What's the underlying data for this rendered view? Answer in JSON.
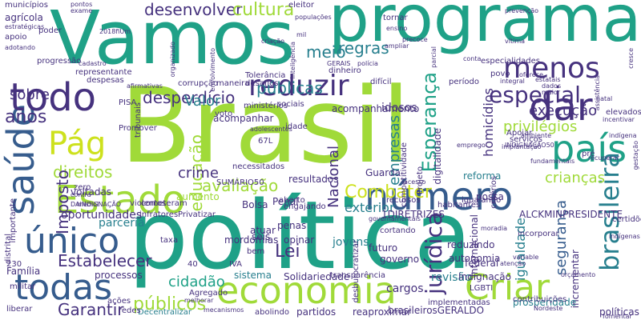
{
  "words": {
    "brasil": "Brasil",
    "politica": "política",
    "programa": "programa",
    "vamos": "Vamos",
    "estado": "Estado",
    "economia": "economia",
    "saude": "saúde",
    "numero": "número",
    "todo": "todo",
    "todas": "todas",
    "unico": "único",
    "pais": "país",
    "dar": "dar",
    "menos": "menos",
    "reduzir": "reduzir",
    "criar": "Criar",
    "pag": "Pág",
    "especial": "especial",
    "brasileira": "brasileira",
    "juridica": "jurídica",
    "combater": "Combater",
    "esperanca": "Esperança",
    "desenvolver": "desenvolver",
    "cultura": "cultura",
    "meio": "meio",
    "regras": "regras",
    "publicas": "públicas",
    "desperdicio": "desperdício",
    "anos": "anos",
    "sobre": "sobre",
    "direitos": "direitos",
    "imposto": "Imposto",
    "valor": "Valor",
    "educacao": "educação",
    "avaliacao": "avaliação",
    "crime": "crime",
    "lei": "Lei",
    "estabelecer": "Estabelecer",
    "cidadao": "cidadão",
    "publicos": "públicos",
    "garantir": "Garantir",
    "nacional": "Nacional",
    "empresas": "empresas",
    "homicidios": "homicídios",
    "execucao": "execução",
    "privilegios": "privilégios",
    "criancas": "crianças",
    "seguranca": "segurança",
    "exterior": "exterior",
    "igualdade": "igualdade",
    "oportunidades": "oportunidades",
    "parceria": "parceria",
    "voltadas": "voltadas",
    "familia": "Família",
    "agricola": "agrícola",
    "municipios": "municípios",
    "apoio": "apoio",
    "aumento": "aumento",
    "idosos": "idosos",
    "reforma": "reforma",
    "jovens": "jovens",
    "cargos": "cargos",
    "revisao": "revisão",
    "indignacao": "Indignação",
    "solidariedade": "Solidariedade",
    "processos": "processos",
    "sistema": "sistema",
    "partidos": "partidos",
    "decentralizar": "Decentralizar",
    "futuro": "futuro",
    "governo": "governo",
    "autonomia": "autonomia",
    "federal": "federal",
    "reduzindo": "reduzindo",
    "internacional": "internacional",
    "incrementar": "incrementar",
    "possa": "possa",
    "alckmin": "ALCKMINPRESIDENTE",
    "diretrizes": "1DIRETRIZES",
    "brasileirosgeraldo": "brasileirosGERALDO",
    "reaproximar": "reaproximar",
    "implementadas": "implementadas",
    "prosperidade": "prosperidade",
    "politicas": "políticas",
    "mordomias": "mordomias",
    "atuar": "atuar",
    "seis": "seis",
    "penas": "penas",
    "opinar": "opinar",
    "bolsa": "Bolsa",
    "penal": "Penal",
    "resultados": "resultados",
    "guarda": "Guarda",
    "acompanhamento": "acompanhamento",
    "competitividade": "competitividade",
    "digitalidade": "digitalidade",
    "projeto": "Projeto",
    "idade": "idade",
    "necessitados": "necessitados",
    "acompanhar": "acompanhar",
    "voto": "voto",
    "ministerios": "ministérios",
    "sociais": "sociais",
    "corrupcao": "corrupção",
    "maneira": "maneira",
    "tolerancia": "Tolerância",
    "desafios": "desafios",
    "pisa": "PISA",
    "promover": "Promover",
    "representante": "representante",
    "despesas": "despesas",
    "progressao": "progressão",
    "poder": "poder",
    "exame": "exame",
    "pontos": "pontos",
    "mil": "mil",
    "eleitor": "eleitor",
    "tornar": "tornar",
    "prevencao": "prevenção",
    "ensino": "ensino",
    "precoce": "precoce",
    "ampliar": "ampliar",
    "policia": "polícia",
    "gerais": "GERAIS",
    "oferece": "oferece",
    "integral": "integral",
    "dados": "dados",
    "maior": "maior",
    "natal": "natal",
    "elevados": "elevados",
    "incentivar": "incentivar",
    "servicos": "serviços",
    "implantacao": "implantação",
    "apoiar": "Apoiar",
    "indigena": "indígena",
    "fundamentais": "fundamentais",
    "certidoes": "certidões",
    "aberto": "aberto",
    "engajando": "engajando",
    "cometeram": "cometeram",
    "violentos": "violentos",
    "infratores": "infratores",
    "privatizar": "Privatizar",
    "taxa": "taxa",
    "iva": "IVA",
    "agregado": "Agregado",
    "melhorar": "melhorar",
    "transparencia": "transparência",
    "cortando": "cortando",
    "bem": "bem",
    "recursos": "recursos",
    "criterios": "critérios",
    "indignacao_caps": "INDIGNAÇÃO50",
    "lgbti": "LGBTI",
    "afirmativas": "afirmativas",
    "dinheiro": "dinheiro",
    "adolescentes": "adolescentes",
    "dificil": "difícil",
    "periodo": "período",
    "mediol": "médiol",
    "contra": "contra",
    "importante": "importante",
    "distrital": "distrital",
    "militar": "militar",
    "zero": "zero",
    "inteligencia": "inteligência",
    "envolvimento": "envolvimento",
    "criacao": "criação",
    "organizado": "organizado",
    "daindignacao": "DAINDIGNAÇÃO",
    "fiu": "2018fiUm",
    "desburocratizar": "desburocratizar",
    "habitantes": "habitantes",
    "igualando": "igualando",
    "indigenas": "indígenas",
    "moradia": "moradia",
    "incorporar": "incorporar",
    "atencao": "atenção",
    "variable": "variable",
    "emprego": "emprego",
    "cadastro": "cadastro",
    "acesso": "acesso",
    "povo": "povo",
    "estatais": "estatais",
    "gestacao": "gestação",
    "ambiente": "ambiente",
    "recuperar": "recuperar",
    "contribuicoes": "contribuições",
    "nordeste": "Nordeste",
    "acoes": "ações",
    "redes": "redes",
    "liberar": "liberar",
    "mecanismos": "mecanismos",
    "abolindo": "abolindo",
    "tribunais": "tribunais",
    "pre": "pré",
    "sumario": "SUMÁRIO50",
    "fomentar": "fomentar",
    "nt": "67L",
    "num230": "230",
    "num40": "40",
    "cresce": "cresce",
    "parcial": "parcial",
    "vitima": "vítima",
    "orcamento": "orçamento",
    "governamentais": "governamentais",
    "especialidades": "especialidades",
    "adotando": "adotando",
    "estrategicas": "estratégicas",
    "populacoes": "populações",
    "conta": "conta",
    "assistencia": "assistência"
  },
  "colors": {
    "lime": "#a0da39",
    "green": "#4ac16d",
    "teal": "#1fa187",
    "tealdark": "#277f8e",
    "blue": "#365c8d",
    "indigo": "#46327e",
    "purple": "#440154",
    "yellow": "#fde725",
    "yellowgreen": "#cde11d"
  }
}
